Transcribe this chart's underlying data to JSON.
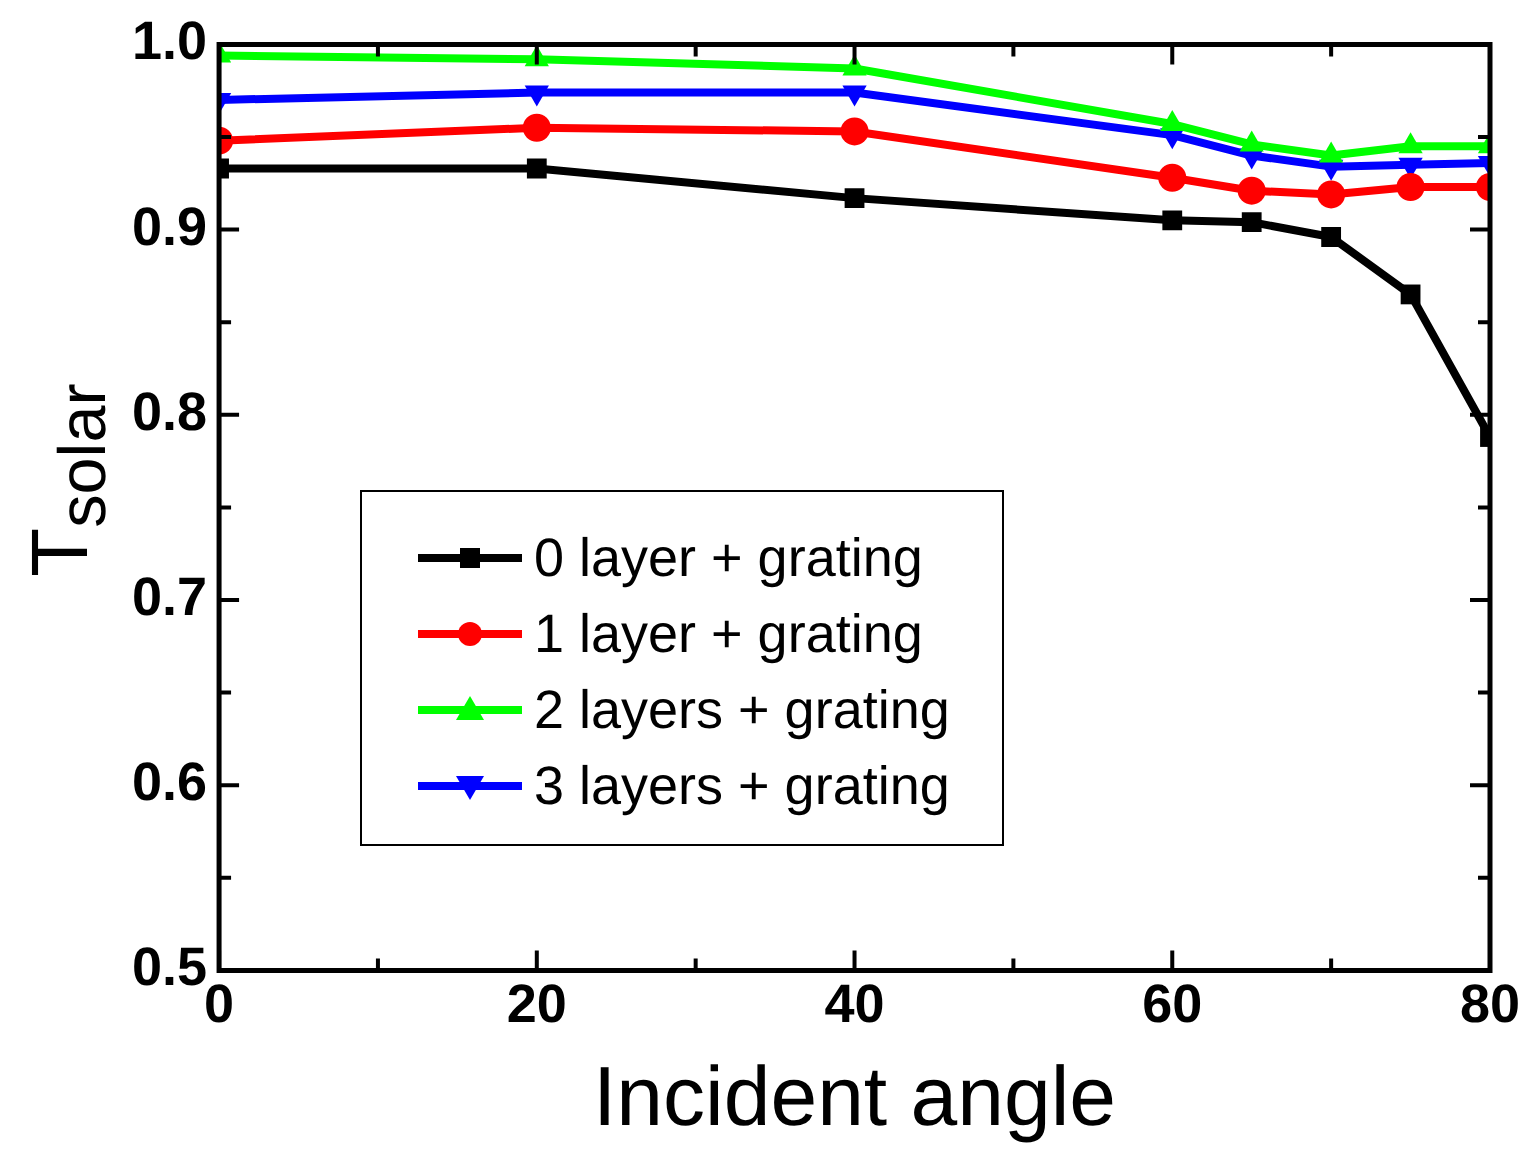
{
  "chart_data": {
    "type": "line",
    "xlabel": "Incident angle",
    "ylabel": "T$_{solar}$",
    "x": [
      0,
      20,
      40,
      60,
      65,
      70,
      75,
      80
    ],
    "xlim": [
      0,
      80
    ],
    "xticks": [
      0,
      {
        "value": 10,
        "label": null
      },
      20,
      {
        "value": 30,
        "label": null
      },
      40,
      {
        "value": 50,
        "label": null
      },
      60,
      {
        "value": 70,
        "label": null
      },
      80
    ],
    "ylim": [
      0.5,
      1.0
    ],
    "yticks": [
      {
        "value": 0.5,
        "label": "0.5"
      },
      {
        "value": 0.55,
        "label": null
      },
      {
        "value": 0.6,
        "label": "0.6"
      },
      {
        "value": 0.65,
        "label": null
      },
      {
        "value": 0.7,
        "label": "0.7"
      },
      {
        "value": 0.75,
        "label": null
      },
      {
        "value": 0.8,
        "label": "0.8"
      },
      {
        "value": 0.85,
        "label": null
      },
      {
        "value": 0.9,
        "label": "0.9"
      },
      {
        "value": 0.95,
        "label": null
      },
      {
        "value": 1.0,
        "label": "1.0"
      }
    ],
    "grid": false,
    "legend": "bottom left",
    "line_style": "solid",
    "series": [
      {
        "name": "0 layer + grating",
        "color": "#000000",
        "marker": "square",
        "values": [
          0.933,
          0.933,
          0.917,
          0.905,
          0.904,
          0.896,
          0.865,
          0.788
        ]
      },
      {
        "name": "1 layer + grating",
        "color": "#ff0000",
        "marker": "circle",
        "values": [
          0.948,
          0.955,
          0.953,
          0.928,
          0.921,
          0.919,
          0.923,
          0.923
        ]
      },
      {
        "name": "2 layers + grating",
        "color": "#00ff00",
        "marker": "triangle",
        "values": [
          0.994,
          0.992,
          0.987,
          0.957,
          0.946,
          0.94,
          0.945,
          0.945
        ]
      },
      {
        "name": "3 layers + grating",
        "color": "#0000ff",
        "marker": "triangle-down",
        "values": [
          0.97,
          0.974,
          0.974,
          0.951,
          0.94,
          0.934,
          0.935,
          0.936
        ]
      }
    ]
  }
}
